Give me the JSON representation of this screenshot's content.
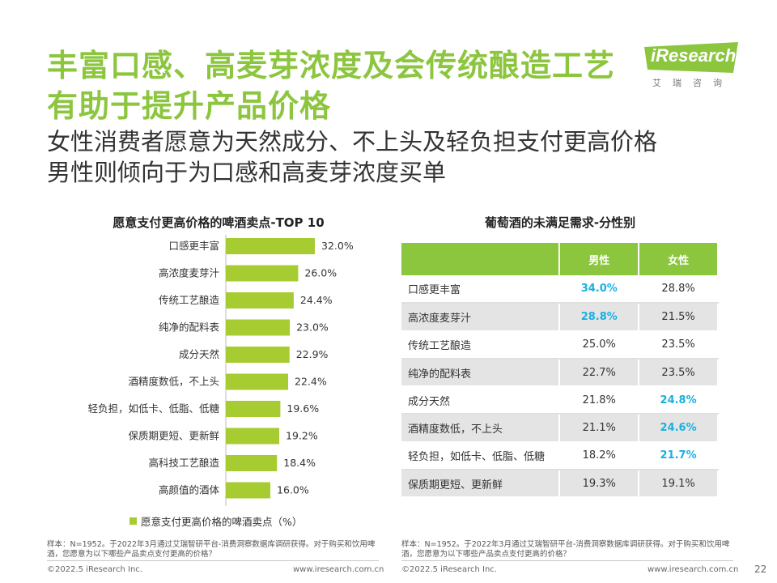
{
  "header": {
    "title": "丰富口感、高麦芽浓度及会传统酿造工艺有助于提升产品价格",
    "subtitle_line1": "女性消费者愿意为天然成分、不上头及轻负担支付更高价格",
    "subtitle_line2": "男性则倾向于为口感和高麦芽浓度买单"
  },
  "logo": {
    "text": "iResearch",
    "sub": "艾瑞咨询"
  },
  "chart_data": [
    {
      "type": "bar",
      "title": "愿意支付更高价格的啤酒卖点-TOP 10",
      "categories": [
        "口感更丰富",
        "高浓度麦芽汁",
        "传统工艺酿造",
        "纯净的配料表",
        "成分天然",
        "酒精度数低，不上头",
        "轻负担，如低卡、低脂、低糖",
        "保质期更短、更新鲜",
        "高科技工艺酿造",
        "高颜值的酒体"
      ],
      "values": [
        32.0,
        26.0,
        24.4,
        23.0,
        22.9,
        22.4,
        19.6,
        19.2,
        18.4,
        16.0
      ],
      "value_labels": [
        "32.0%",
        "26.0%",
        "24.4%",
        "23.0%",
        "22.9%",
        "22.4%",
        "19.6%",
        "19.2%",
        "18.4%",
        "16.0%"
      ],
      "series": [
        {
          "name": "愿意支付更高价格的啤酒卖点（%）",
          "values": [
            32.0,
            26.0,
            24.4,
            23.0,
            22.9,
            22.4,
            19.6,
            19.2,
            18.4,
            16.0
          ]
        }
      ],
      "orientation": "horizontal",
      "color": "#a6cc32"
    },
    {
      "type": "table",
      "title": "葡萄酒的未满足需求-分性别",
      "columns": [
        "",
        "男性",
        "女性"
      ],
      "rows": [
        {
          "label": "口感更丰富",
          "male": "34.0%",
          "female": "28.8%",
          "highlight": "male"
        },
        {
          "label": "高浓度麦芽汁",
          "male": "28.8%",
          "female": "21.5%",
          "highlight": "male"
        },
        {
          "label": "传统工艺酿造",
          "male": "25.0%",
          "female": "23.5%",
          "highlight": ""
        },
        {
          "label": "纯净的配料表",
          "male": "22.7%",
          "female": "23.5%",
          "highlight": ""
        },
        {
          "label": "成分天然",
          "male": "21.8%",
          "female": "24.8%",
          "highlight": "female"
        },
        {
          "label": "酒精度数低，不上头",
          "male": "21.1%",
          "female": "24.6%",
          "highlight": "female"
        },
        {
          "label": "轻负担，如低卡、低脂、低糖",
          "male": "18.2%",
          "female": "21.7%",
          "highlight": "female"
        },
        {
          "label": "保质期更短、更新鲜",
          "male": "19.3%",
          "female": "19.1%",
          "highlight": ""
        }
      ],
      "header_color": "#8cc63f",
      "highlight_color": "#1ab0e0"
    }
  ],
  "legend_label": "愿意支付更高价格的啤酒卖点（%）",
  "notes": {
    "left": "样本：N=1952。于2022年3月通过艾瑞智研平台-消费洞察数据库调研获得。对于购买和饮用啤酒，您愿意为以下哪些产品卖点支付更高的价格？",
    "right": "样本：N=1952。于2022年3月通过艾瑞智研平台-消费洞察数据库调研获得。对于购买和饮用啤酒，您愿意为以下哪些产品卖点支付更高的价格？"
  },
  "footer": {
    "left_copyright": "©2022.5 iResearch Inc.",
    "left_url": "www.iresearch.com.cn",
    "right_copyright": "©2022.5 iResearch Inc.",
    "right_url": "www.iresearch.com.cn",
    "page_number": "22"
  }
}
